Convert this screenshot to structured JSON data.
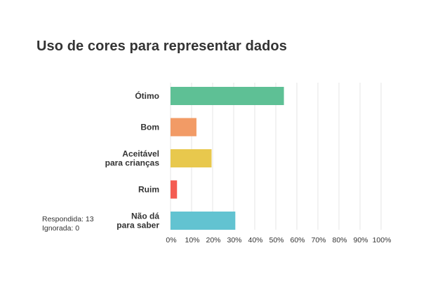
{
  "chart_data": {
    "type": "bar",
    "orientation": "horizontal",
    "title": "Uso de cores para representar dados",
    "categories": [
      [
        "Ótimo"
      ],
      [
        "Bom"
      ],
      [
        "Aceitável",
        "para crianças"
      ],
      [
        "Ruim"
      ],
      [
        "Não dá",
        "para saber"
      ]
    ],
    "values": [
      53.85,
      12.31,
      19.5,
      3.08,
      30.77
    ],
    "colors": [
      "#5ec095",
      "#f29b66",
      "#e8c84d",
      "#f45c52",
      "#62c3d1"
    ],
    "xlim": [
      0,
      100
    ],
    "xticks": [
      "0%",
      "10%",
      "20%",
      "30%",
      "40%",
      "50%",
      "60%",
      "70%",
      "80%",
      "90%",
      "100%"
    ],
    "grid": true,
    "xlabel": "",
    "ylabel": ""
  },
  "stats": {
    "answered": "Respondida: 13",
    "skipped": "Ignorada: 0"
  }
}
